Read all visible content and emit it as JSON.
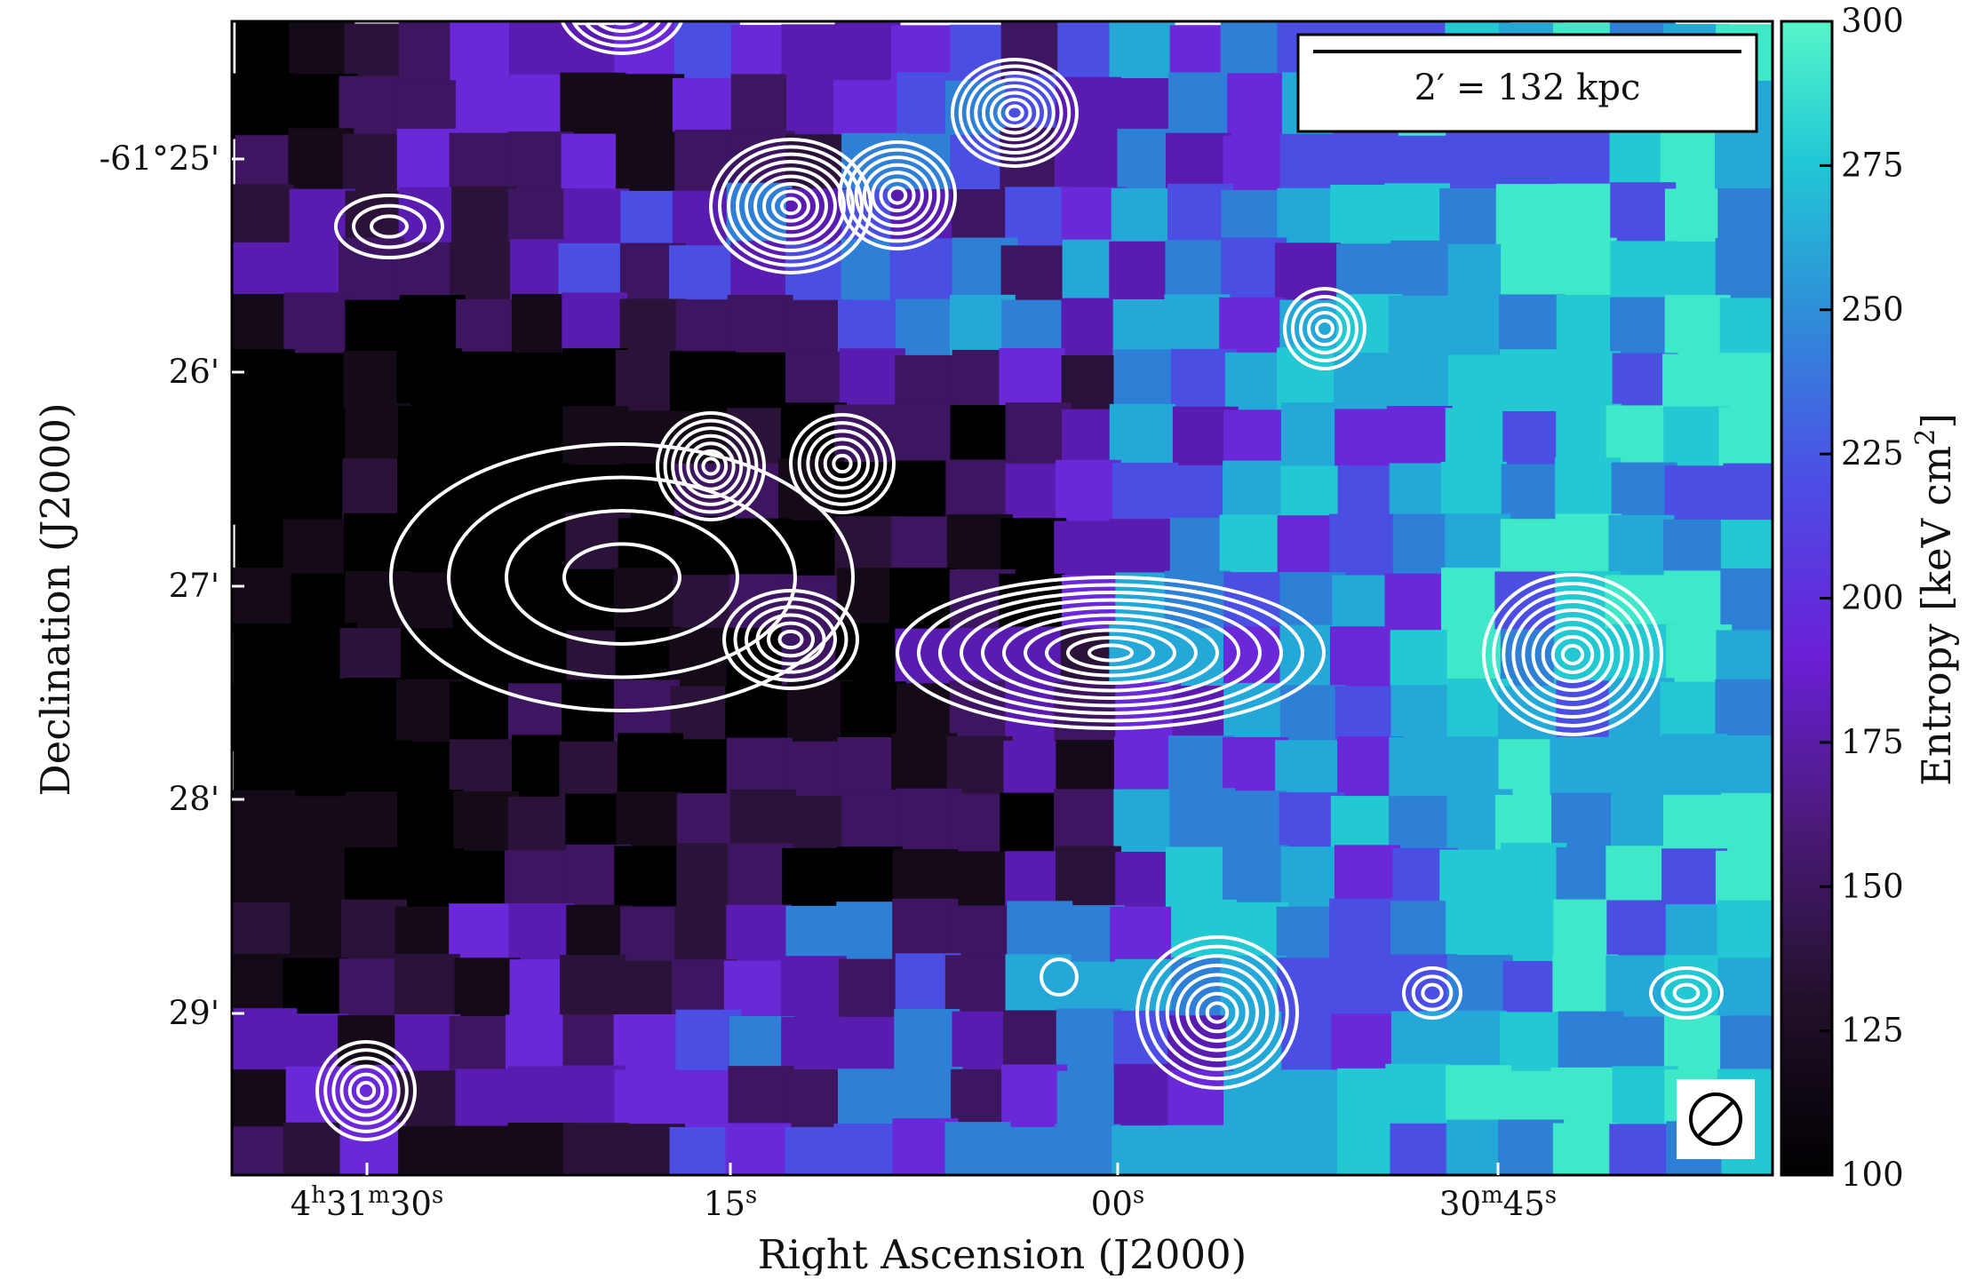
{
  "chart_data": {
    "type": "image",
    "xlabel": "Right Ascension (J2000)",
    "ylabel": "Declination (J2000)",
    "ra_ticks": [
      [
        "4",
        "h",
        "31",
        "m",
        "30",
        "s"
      ],
      [
        "15",
        "s"
      ],
      [
        "00",
        "s"
      ],
      [
        "30",
        "m",
        "45",
        "s"
      ]
    ],
    "dec_ticks": [
      "-61°25'",
      "26'",
      "27'",
      "28'",
      "29'"
    ],
    "scale_bar": "2′  =  132 kpc",
    "colorbar": {
      "label": "Entropy [keV cm",
      "label_sup": "2",
      "label_end": "]",
      "lim": [
        100,
        300
      ],
      "ticks": [
        100,
        125,
        150,
        175,
        200,
        225,
        250,
        275,
        300
      ]
    }
  }
}
